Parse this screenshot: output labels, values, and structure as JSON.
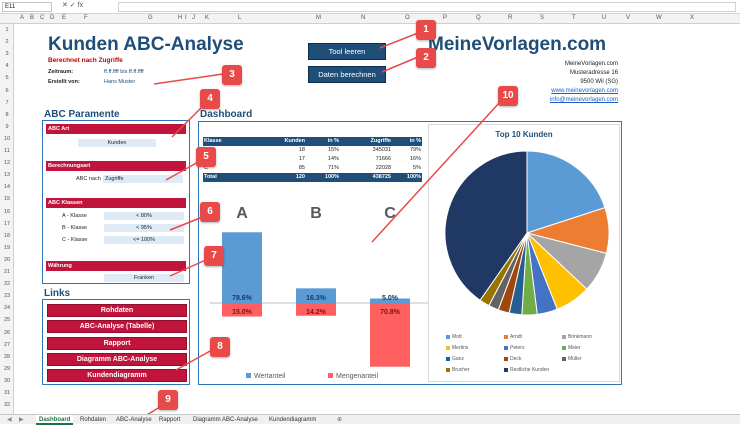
{
  "formula_bar": {
    "cell_ref": "E11",
    "fx": "✕ ✓ fx"
  },
  "columns": [
    "A",
    "B",
    "C",
    "D",
    "E",
    "F",
    "G",
    "H",
    "I",
    "J",
    "K",
    "L",
    "M",
    "N",
    "O",
    "P",
    "Q",
    "R",
    "S",
    "T",
    "U",
    "V",
    "W",
    "X"
  ],
  "rows": [
    "1",
    "2",
    "3",
    "4",
    "5",
    "6",
    "7",
    "8",
    "9",
    "10",
    "11",
    "12",
    "13",
    "14",
    "15",
    "16",
    "17",
    "18",
    "19",
    "20",
    "21",
    "22",
    "23",
    "24",
    "25",
    "26",
    "27",
    "28",
    "29",
    "30",
    "31",
    "32"
  ],
  "header": {
    "title": "Kunden ABC-Analyse",
    "subtitle": "Berechnet nach Zugriffe",
    "zeitraum_label": "Zeitraum:",
    "zeitraum_value": "ff.ff.ffff bis ff.ff.ffff",
    "erstellt_label": "Erstellt von:",
    "erstellt_value": "Hans Muster",
    "btn_tool": "Tool leeren",
    "btn_berechnen": "Daten berechnen",
    "brand": "MeineVorlagen.com",
    "address": [
      "MeineVorlagen.com",
      "Musteradresse 16",
      "9500 Wil (SG)"
    ],
    "links": [
      "www.meinevorlagen.com",
      "info@meinevorlagen.com"
    ]
  },
  "params": {
    "heading": "ABC Paramente",
    "abc_art_label": "ABC Art",
    "abc_art_value": "Kunden",
    "berechnungsart_label": "Berechnungsart",
    "berechnungsart_prefix": "ABC nach",
    "berechnungsart_value": "Zugriffe",
    "klassen_label": "ABC Klassen",
    "klassen": [
      {
        "name": "A - Klasse",
        "value": "< 80%"
      },
      {
        "name": "B - Klasse",
        "value": "< 95%"
      },
      {
        "name": "C - Klasse",
        "value": "<= 100%"
      }
    ],
    "waehrung_label": "Währung",
    "waehrung_value": "Franken"
  },
  "links_section": {
    "heading": "Links",
    "buttons": [
      "Rohdaten",
      "ABC-Analyse (Tabelle)",
      "Rapport",
      "Diagramm ABC-Analyse",
      "Kundendiagramm"
    ]
  },
  "dashboard": {
    "heading": "Dashboard",
    "table_headers": [
      "Klasse",
      "Kunden",
      "in %",
      "Zugriffe",
      "in %"
    ],
    "table_rows": [
      [
        "A",
        "18",
        "15%",
        "345031",
        "79%"
      ],
      [
        "B",
        "17",
        "14%",
        "71666",
        "16%"
      ],
      [
        "C",
        "85",
        "71%",
        "22028",
        "5%"
      ]
    ],
    "table_total": [
      "Total",
      "120",
      "100%",
      "438725",
      "100%"
    ]
  },
  "chart_data": [
    {
      "type": "bar",
      "categories": [
        "A",
        "B",
        "C"
      ],
      "series": [
        {
          "name": "Wertanteil",
          "values": [
            78.6,
            16.3,
            5.0
          ],
          "labels": [
            "78.6%",
            "16.3%",
            "5.0%"
          ],
          "color": "#5b9bd5"
        },
        {
          "name": "Mengenanteil",
          "values": [
            15.0,
            14.2,
            70.8
          ],
          "labels": [
            "15.0%",
            "14.2%",
            "70.8%"
          ],
          "color": "#ff5f5f"
        }
      ],
      "legend": "bottom"
    },
    {
      "type": "pie",
      "title": "Top 10 Kunden",
      "series": [
        {
          "name": "Mott",
          "value": 20,
          "color": "#5b9bd5"
        },
        {
          "name": "Arndt",
          "value": 9,
          "color": "#ed7d31"
        },
        {
          "name": "Brinkmann",
          "value": 8,
          "color": "#a5a5a5"
        },
        {
          "name": "Mertins",
          "value": 7,
          "color": "#ffc000"
        },
        {
          "name": "Peters",
          "value": 4,
          "color": "#4472c4"
        },
        {
          "name": "Meier",
          "value": 3,
          "color": "#70ad47"
        },
        {
          "name": "Ganz",
          "value": 2.5,
          "color": "#255e91"
        },
        {
          "name": "Deck",
          "value": 2.2,
          "color": "#9e480e"
        },
        {
          "name": "Müller",
          "value": 2,
          "color": "#636363"
        },
        {
          "name": "Brucher",
          "value": 2,
          "color": "#997300"
        },
        {
          "name": "Restliche Kunden",
          "value": 40.3,
          "color": "#203864"
        }
      ],
      "legend": "bottom"
    }
  ],
  "callouts": [
    "1",
    "2",
    "3",
    "4",
    "5",
    "6",
    "7",
    "8",
    "9",
    "10"
  ],
  "tabs": [
    "Dashboard",
    "Rohdaten",
    "ABC-Analyse",
    "Rapport",
    "Diagramm ABC-Analyse",
    "Kundendiagramm"
  ]
}
